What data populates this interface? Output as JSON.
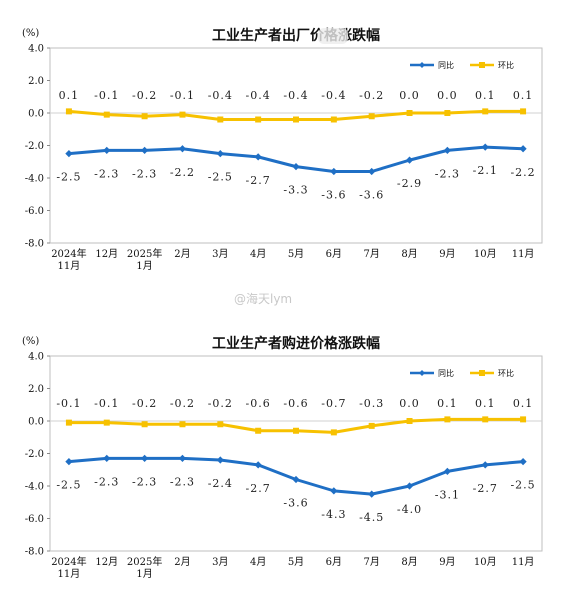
{
  "watermark": "@海天lym",
  "chart_data": [
    {
      "type": "line",
      "title": "工业生产者出厂价格涨跌幅",
      "unit_label": "(%)",
      "ylim": [
        -8.0,
        4.0
      ],
      "y_ticks": [
        "4.0",
        "2.0",
        "0.0",
        "-2.0",
        "-4.0",
        "-6.0",
        "-8.0"
      ],
      "categories": [
        [
          "2024年",
          "11月"
        ],
        [
          "12月"
        ],
        [
          "2025年",
          "1月"
        ],
        [
          "2月"
        ],
        [
          "3月"
        ],
        [
          "4月"
        ],
        [
          "5月"
        ],
        [
          "6月"
        ],
        [
          "7月"
        ],
        [
          "8月"
        ],
        [
          "9月"
        ],
        [
          "10月"
        ],
        [
          "11月"
        ]
      ],
      "grid": false,
      "legend_position": "top-right",
      "series": [
        {
          "name": "同比",
          "color": "#1f6fc5",
          "values": [
            -2.5,
            -2.3,
            -2.3,
            -2.2,
            -2.5,
            -2.7,
            -3.3,
            -3.6,
            -3.6,
            -2.9,
            -2.3,
            -2.1,
            -2.2
          ],
          "labels": [
            "-2.5",
            "-2.3",
            "-2.3",
            "-2.2",
            "-2.5",
            "-2.7",
            "-3.3",
            "-3.6",
            "-3.6",
            "-2.9",
            "-2.3",
            "-2.1",
            "-2.2"
          ]
        },
        {
          "name": "环比",
          "color": "#f7c100",
          "values": [
            0.1,
            -0.1,
            -0.2,
            -0.1,
            -0.4,
            -0.4,
            -0.4,
            -0.4,
            -0.2,
            0.0,
            0.0,
            0.1,
            0.1
          ],
          "labels": [
            "0.1",
            "-0.1",
            "-0.2",
            "-0.1",
            "-0.4",
            "-0.4",
            "-0.4",
            "-0.4",
            "-0.2",
            "0.0",
            "0.0",
            "0.1",
            "0.1"
          ]
        }
      ]
    },
    {
      "type": "line",
      "title": "工业生产者购进价格涨跌幅",
      "unit_label": "(%)",
      "ylim": [
        -8.0,
        4.0
      ],
      "y_ticks": [
        "4.0",
        "2.0",
        "0.0",
        "-2.0",
        "-4.0",
        "-6.0",
        "-8.0"
      ],
      "categories": [
        [
          "2024年",
          "11月"
        ],
        [
          "12月"
        ],
        [
          "2025年",
          "1月"
        ],
        [
          "2月"
        ],
        [
          "3月"
        ],
        [
          "4月"
        ],
        [
          "5月"
        ],
        [
          "6月"
        ],
        [
          "7月"
        ],
        [
          "8月"
        ],
        [
          "9月"
        ],
        [
          "10月"
        ],
        [
          "11月"
        ]
      ],
      "grid": false,
      "legend_position": "top-right",
      "series": [
        {
          "name": "同比",
          "color": "#1f6fc5",
          "values": [
            -2.5,
            -2.3,
            -2.3,
            -2.3,
            -2.4,
            -2.7,
            -3.6,
            -4.3,
            -4.5,
            -4.0,
            -3.1,
            -2.7,
            -2.5
          ],
          "labels": [
            "-2.5",
            "-2.3",
            "-2.3",
            "-2.3",
            "-2.4",
            "-2.7",
            "-3.6",
            "-4.3",
            "-4.5",
            "-4.0",
            "-3.1",
            "-2.7",
            "-2.5"
          ]
        },
        {
          "name": "环比",
          "color": "#f7c100",
          "values": [
            -0.1,
            -0.1,
            -0.2,
            -0.2,
            -0.2,
            -0.6,
            -0.6,
            -0.7,
            -0.3,
            0.0,
            0.1,
            0.1,
            0.1
          ],
          "labels": [
            "-0.1",
            "-0.1",
            "-0.2",
            "-0.2",
            "-0.2",
            "-0.6",
            "-0.6",
            "-0.7",
            "-0.3",
            "0.0",
            "0.1",
            "0.1",
            "0.1"
          ]
        }
      ]
    }
  ]
}
